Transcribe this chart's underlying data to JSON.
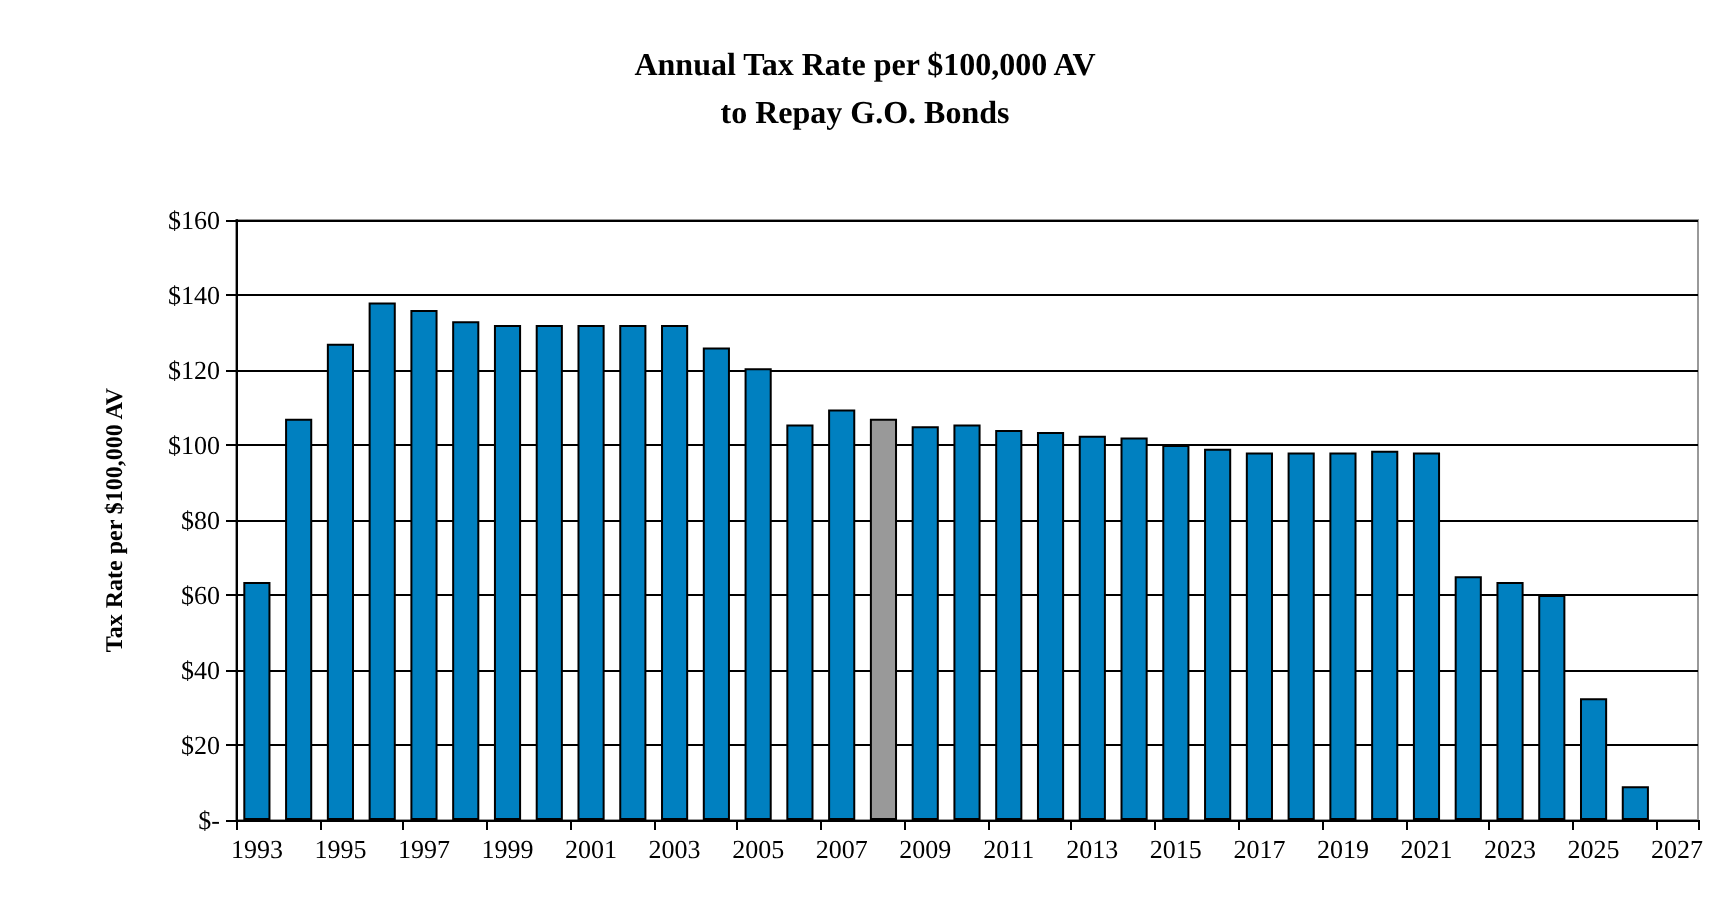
{
  "chart_data": {
    "type": "bar",
    "title": "Annual Tax Rate per $100,000 AV\nto Repay G.O. Bonds",
    "ylabel": "Tax Rate per $100,000 AV",
    "categories": [
      "1993",
      null,
      "1995",
      null,
      "1997",
      null,
      "1999",
      null,
      "2001",
      null,
      "2003",
      null,
      "2005",
      null,
      "2007",
      null,
      "2009",
      null,
      "2011",
      null,
      "2013",
      null,
      "2015",
      null,
      "2017",
      null,
      "2019",
      null,
      "2021",
      null,
      "2023",
      null,
      "2025",
      null,
      "2027"
    ],
    "values": [
      63.5,
      107,
      127,
      138,
      136,
      133,
      132,
      132,
      132,
      132,
      132,
      126,
      120.5,
      105.5,
      109.5,
      107,
      105,
      105.5,
      104,
      103.5,
      102.5,
      102,
      100,
      99,
      98,
      98,
      98,
      98.5,
      98,
      65,
      63.5,
      60,
      32.5,
      9,
      null
    ],
    "colors": [
      "#0080c0",
      "#0080c0",
      "#0080c0",
      "#0080c0",
      "#0080c0",
      "#0080c0",
      "#0080c0",
      "#0080c0",
      "#0080c0",
      "#0080c0",
      "#0080c0",
      "#0080c0",
      "#0080c0",
      "#0080c0",
      "#0080c0",
      "#999999",
      "#0080c0",
      "#0080c0",
      "#0080c0",
      "#0080c0",
      "#0080c0",
      "#0080c0",
      "#0080c0",
      "#0080c0",
      "#0080c0",
      "#0080c0",
      "#0080c0",
      "#0080c0",
      "#0080c0",
      "#0080c0",
      "#0080c0",
      "#0080c0",
      "#0080c0",
      "#0080c0",
      "#0080c0"
    ],
    "ylim": [
      0,
      160
    ],
    "yticks": [
      {
        "value": 0,
        "label": "$-"
      },
      {
        "value": 20,
        "label": "$20"
      },
      {
        "value": 40,
        "label": "$40"
      },
      {
        "value": 60,
        "label": "$60"
      },
      {
        "value": 80,
        "label": "$80"
      },
      {
        "value": 100,
        "label": "$100"
      },
      {
        "value": 120,
        "label": "$120"
      },
      {
        "value": 140,
        "label": "$140"
      },
      {
        "value": 160,
        "label": "$160"
      }
    ],
    "grid": "y"
  }
}
